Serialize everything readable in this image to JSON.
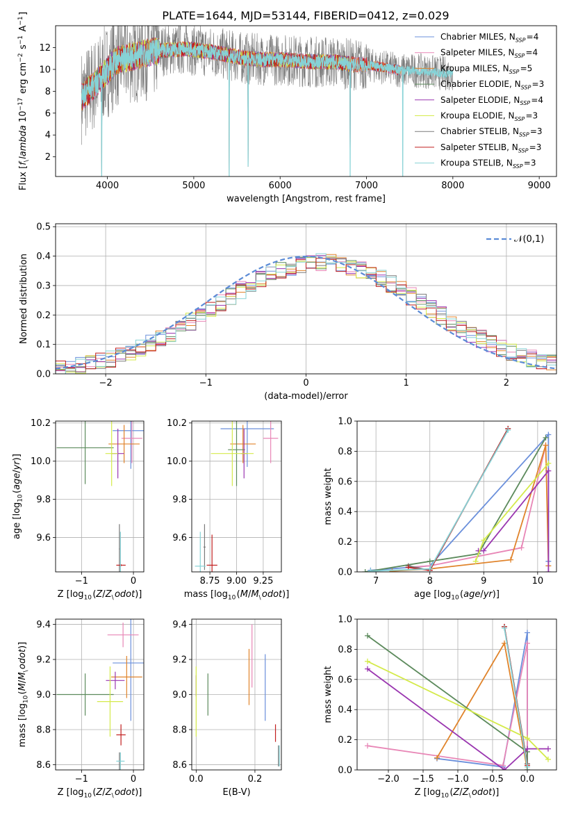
{
  "title": "PLATE=1644, MJD=53144, FIBERID=0412, z=0.029",
  "colors": {
    "Chabrier MILES": "#6a8fdb",
    "Salpeter MILES": "#e886b6",
    "Kroupa MILES": "#e0832a",
    "Chabrier ELODIE": "#5c8a5c",
    "Salpeter ELODIE": "#9a36b0",
    "Kroupa ELODIE": "#d4ea4a",
    "Chabrier STELIB": "#7a7a7a",
    "Salpeter STELIB": "#c11e1e",
    "Kroupa STELIB": "#86d2d6",
    "gauss": "#5b8bd6"
  },
  "chart_data": [
    {
      "type": "line",
      "id": "spectrum",
      "xlabel": "wavelength [Angstrom, rest frame]",
      "ylabel": "Flux [$f_\\lambda 10^{-17}$ erg cm$^{-2}$ s$^{-1}$ A$^{-1}$]",
      "xlim": [
        3400,
        9200
      ],
      "ylim": [
        0.2,
        14.0
      ],
      "xticks": [
        "4000",
        "5000",
        "6000",
        "7000",
        "8000",
        "9000"
      ],
      "yticks": [
        "2",
        "4",
        "6",
        "8",
        "10",
        "12"
      ],
      "legend": "top-right",
      "series": [
        {
          "name": "Chabrier MILES, N$_{SSP}$=4"
        },
        {
          "name": "Salpeter MILES, N$_{SSP}$=4"
        },
        {
          "name": "Kroupa MILES, N$_{SSP}$=5"
        },
        {
          "name": "Chabrier ELODIE, N$_{SSP}$=3"
        },
        {
          "name": "Salpeter ELODIE, N$_{SSP}$=4"
        },
        {
          "name": "Kroupa ELODIE, N$_{SSP}$=3"
        },
        {
          "name": "Chabrier STELIB, N$_{SSP}$=3"
        },
        {
          "name": "Salpeter STELIB, N$_{SSP}$=3"
        },
        {
          "name": "Kroupa STELIB, N$_{SSP}$=3"
        }
      ],
      "continuum": {
        "x": [
          3700,
          3800,
          3900,
          4000,
          4100,
          4200,
          4300,
          4400,
          4500,
          4600,
          4700,
          4800,
          4900,
          5000,
          5200,
          5400,
          5600,
          5800,
          6000,
          6200,
          6400,
          6600,
          6800,
          7000,
          7200,
          7400,
          7600,
          7800,
          8000,
          8200,
          8400,
          8600,
          8800,
          9000,
          9200
        ],
        "y": [
          7.5,
          8.2,
          9.0,
          9.9,
          10.8,
          11.0,
          11.2,
          11.4,
          11.6,
          11.7,
          11.8,
          11.8,
          11.9,
          11.8,
          11.6,
          11.3,
          11.0,
          10.9,
          10.9,
          10.8,
          10.7,
          10.7,
          10.5,
          10.4,
          10.2,
          9.9,
          9.9,
          9.7,
          9.6,
          9.5,
          9.4,
          9.4,
          9.3,
          9.2,
          9.2
        ]
      },
      "absorption_features": [
        {
          "x": 3934,
          "min": 0.2
        },
        {
          "x": 5411,
          "min": 0.2
        },
        {
          "x": 5630,
          "min": 1.1
        },
        {
          "x": 6810,
          "min": 0.2
        },
        {
          "x": 7420,
          "min": 0.2
        }
      ]
    },
    {
      "type": "bar",
      "id": "residuals",
      "xlabel": "(data-model)/error",
      "ylabel": "Normed distribution",
      "xlim": [
        -2.5,
        2.5
      ],
      "ylim": [
        0,
        0.51
      ],
      "xticks": [
        "−2",
        "−1",
        "0",
        "1",
        "2"
      ],
      "yticks": [
        "0.0",
        "0.1",
        "0.2",
        "0.3",
        "0.4",
        "0.5"
      ],
      "bin_width": 0.1,
      "gauss_label": "$\\mathcal{N}(0,1)$",
      "legend": "top-right",
      "note": "nine step histograms, one per model; values follow approximately the N(0,1) curve"
    },
    {
      "type": "scatter",
      "id": "age_vs_Z",
      "xlabel": "Z [log$_{10}$($Z/Z_\\odot$)]",
      "ylabel": "age  [log$_{10}$($age/yr$)]",
      "xlim": [
        -1.5,
        0.2
      ],
      "ylim": [
        9.42,
        10.21
      ],
      "xticks": [
        "−1",
        "0"
      ],
      "yticks": [
        "9.6",
        "9.8",
        "10.0",
        "10.2"
      ],
      "points": [
        {
          "model": "Chabrier MILES",
          "x": -0.05,
          "y": 10.16,
          "xerr": 0.35,
          "yerr": 0.2
        },
        {
          "model": "Salpeter MILES",
          "x": -0.03,
          "y": 10.12,
          "xerr": 0.2,
          "yerr": 0.13
        },
        {
          "model": "Kroupa MILES",
          "x": -0.18,
          "y": 10.09,
          "xerr": 0.3,
          "yerr": 0.1
        },
        {
          "model": "Chabrier ELODIE",
          "x": -0.93,
          "y": 10.07,
          "xerr": 0.55,
          "yerr": 0.19
        },
        {
          "model": "Salpeter ELODIE",
          "x": -0.3,
          "y": 10.04,
          "xerr": 0.12,
          "yerr": 0.13
        },
        {
          "model": "Kroupa ELODIE",
          "x": -0.42,
          "y": 10.04,
          "xerr": 0.12,
          "yerr": 0.17
        },
        {
          "model": "Chabrier STELIB",
          "x": -0.27,
          "y": 9.54,
          "xerr": 0.01,
          "yerr": 0.13
        },
        {
          "model": "Salpeter STELIB",
          "x": -0.24,
          "y": 9.455,
          "xerr": 0.09,
          "yerr": 0.005
        },
        {
          "model": "Kroupa STELIB",
          "x": -0.25,
          "y": 9.45,
          "xerr": 0.01,
          "yerr": 0.18
        }
      ]
    },
    {
      "type": "scatter",
      "id": "age_vs_mass",
      "xlabel": "mass [log$_{10}$($M/M_\\odot$)]",
      "ylabel": "",
      "xlim": [
        8.58,
        9.42
      ],
      "ylim": [
        9.42,
        10.21
      ],
      "xticks": [
        "8.75",
        "9.00",
        "9.25"
      ],
      "yticks": [
        "9.6",
        "9.8",
        "10.0",
        "10.2"
      ],
      "points": [
        {
          "model": "Chabrier MILES",
          "x": 9.1,
          "y": 10.17,
          "xerr": 0.25,
          "yerr": 0.2
        },
        {
          "model": "Salpeter MILES",
          "x": 9.32,
          "y": 10.12,
          "xerr": 0.07,
          "yerr": 0.13
        },
        {
          "model": "Kroupa MILES",
          "x": 9.06,
          "y": 10.09,
          "xerr": 0.12,
          "yerr": 0.1
        },
        {
          "model": "Chabrier ELODIE",
          "x": 9.0,
          "y": 10.06,
          "xerr": 0.08,
          "yerr": 0.19
        },
        {
          "model": "Salpeter ELODIE",
          "x": 9.07,
          "y": 10.04,
          "xerr": 0.03,
          "yerr": 0.13
        },
        {
          "model": "Kroupa ELODIE",
          "x": 8.96,
          "y": 10.04,
          "xerr": 0.2,
          "yerr": 0.17
        },
        {
          "model": "Chabrier STELIB",
          "x": 8.7,
          "y": 9.55,
          "xerr": 0.01,
          "yerr": 0.12
        },
        {
          "model": "Salpeter STELIB",
          "x": 8.77,
          "y": 9.455,
          "xerr": 0.05,
          "yerr": 0.16
        },
        {
          "model": "Kroupa STELIB",
          "x": 8.66,
          "y": 9.45,
          "xerr": 0.05,
          "yerr": 0.18
        }
      ]
    },
    {
      "type": "line",
      "id": "weight_vs_age",
      "xlabel": "age  [log$_{10}$($age/yr$)]",
      "ylabel": "mass weight",
      "xlim": [
        6.65,
        10.35
      ],
      "ylim": [
        0,
        1
      ],
      "xticks": [
        "7",
        "8",
        "9",
        "10"
      ],
      "yticks": [
        "0.0",
        "0.2",
        "0.4",
        "0.6",
        "0.8",
        "1.0"
      ],
      "series": [
        {
          "model": "Chabrier MILES",
          "x": [
            6.9,
            8.0,
            10.2,
            10.2
          ],
          "y": [
            0.01,
            0.04,
            0.91,
            0.07
          ]
        },
        {
          "model": "Salpeter MILES",
          "x": [
            7.6,
            8.0,
            9.7,
            10.15
          ],
          "y": [
            0.03,
            0.04,
            0.16,
            0.84
          ]
        },
        {
          "model": "Kroupa MILES",
          "x": [
            7.3,
            8.0,
            9.5,
            10.15,
            10.2
          ],
          "y": [
            0.005,
            0.02,
            0.08,
            0.84,
            0.04
          ]
        },
        {
          "model": "Chabrier ELODIE",
          "x": [
            6.8,
            8.0,
            8.9,
            10.15
          ],
          "y": [
            0.0,
            0.07,
            0.12,
            0.89
          ]
        },
        {
          "model": "Salpeter ELODIE",
          "x": [
            8.9,
            9.0,
            10.2,
            10.2
          ],
          "y": [
            0.14,
            0.14,
            0.67,
            0.0
          ]
        },
        {
          "model": "Kroupa ELODIE",
          "x": [
            8.85,
            9.0,
            10.2
          ],
          "y": [
            0.07,
            0.21,
            0.72
          ]
        },
        {
          "model": "Chabrier STELIB",
          "x": [
            7.6,
            8.0,
            9.45
          ],
          "y": [
            0.04,
            0.01,
            0.95
          ]
        },
        {
          "model": "Salpeter STELIB",
          "x": [
            7.6,
            8.0,
            9.45
          ],
          "y": [
            0.03,
            0.01,
            0.95
          ]
        },
        {
          "model": "Kroupa STELIB",
          "x": [
            6.9,
            8.0,
            9.45
          ],
          "y": [
            0.005,
            0.02,
            0.94
          ]
        }
      ]
    },
    {
      "type": "scatter",
      "id": "mass_vs_Z",
      "xlabel": "Z [log$_{10}$($Z/Z_\\odot$)]",
      "ylabel": "mass [log$_{10}$($M/M_\\odot$)]",
      "xlim": [
        -1.5,
        0.2
      ],
      "ylim": [
        8.57,
        9.43
      ],
      "xticks": [
        "−1",
        "0"
      ],
      "yticks": [
        "8.6",
        "8.8",
        "9.0",
        "9.2",
        "9.4"
      ],
      "points": [
        {
          "model": "Chabrier MILES",
          "x": -0.05,
          "y": 9.18,
          "xerr": 0.35,
          "yerr": 0.33
        },
        {
          "model": "Salpeter MILES",
          "x": -0.2,
          "y": 9.34,
          "xerr": 0.3,
          "yerr": 0.07
        },
        {
          "model": "Kroupa MILES",
          "x": -0.13,
          "y": 9.1,
          "xerr": 0.3,
          "yerr": 0.12
        },
        {
          "model": "Chabrier ELODIE",
          "x": -0.93,
          "y": 9.0,
          "xerr": 0.55,
          "yerr": 0.12
        },
        {
          "model": "Salpeter ELODIE",
          "x": -0.35,
          "y": 9.08,
          "xerr": 0.18,
          "yerr": 0.05
        },
        {
          "model": "Kroupa ELODIE",
          "x": -0.45,
          "y": 8.96,
          "xerr": 0.25,
          "yerr": 0.2
        },
        {
          "model": "Chabrier STELIB",
          "x": -0.27,
          "y": 8.62,
          "xerr": 0.01,
          "yerr": 0.05
        },
        {
          "model": "Salpeter STELIB",
          "x": -0.24,
          "y": 8.77,
          "xerr": 0.09,
          "yerr": 0.06
        },
        {
          "model": "Kroupa STELIB",
          "x": -0.25,
          "y": 8.62,
          "xerr": 0.08,
          "yerr": 0.05
        }
      ]
    },
    {
      "type": "scatter",
      "id": "mass_vs_EBV",
      "xlabel": "E(B-V)",
      "ylabel": "",
      "xlim": [
        -0.015,
        0.29
      ],
      "ylim": [
        8.57,
        9.43
      ],
      "xticks": [
        "0.0",
        "0.2"
      ],
      "yticks": [
        "8.6",
        "8.8",
        "9.0",
        "9.2",
        "9.4"
      ],
      "points": [
        {
          "model": "Chabrier MILES",
          "x": 0.235,
          "y": 9.04,
          "yerr": 0.19
        },
        {
          "model": "Salpeter MILES",
          "x": 0.19,
          "y": 9.22,
          "yerr": 0.18
        },
        {
          "model": "Kroupa MILES",
          "x": 0.18,
          "y": 9.1,
          "yerr": 0.16
        },
        {
          "model": "Chabrier ELODIE",
          "x": 0.04,
          "y": 9.0,
          "yerr": 0.12
        },
        {
          "model": "Salpeter ELODIE",
          "x": 0.0,
          "y": 9.05,
          "yerr": 0.06
        },
        {
          "model": "Kroupa ELODIE",
          "x": 0.0,
          "y": 8.96,
          "yerr": 0.2
        },
        {
          "model": "Chabrier STELIB",
          "x": 0.28,
          "y": 8.65,
          "yerr": 0.06
        },
        {
          "model": "Salpeter STELIB",
          "x": 0.27,
          "y": 8.78,
          "yerr": 0.05
        },
        {
          "model": "Kroupa STELIB",
          "x": 0.283,
          "y": 8.65,
          "yerr": 0.06
        }
      ]
    },
    {
      "type": "line",
      "id": "weight_vs_Z",
      "xlabel": "Z [log$_{10}$($Z/Z_\\odot$)]",
      "ylabel": "mass weight",
      "xlim": [
        -2.45,
        0.42
      ],
      "ylim": [
        0,
        1
      ],
      "xticks": [
        "−2.0",
        "−1.5",
        "−1.0",
        "−0.5",
        "0.0"
      ],
      "yticks": [
        "0.0",
        "0.2",
        "0.4",
        "0.6",
        "0.8",
        "1.0"
      ],
      "series": [
        {
          "model": "Chabrier MILES",
          "x": [
            -1.3,
            -0.35,
            0.0,
            0.0
          ],
          "y": [
            0.075,
            0.02,
            0.91,
            0.04
          ]
        },
        {
          "model": "Salpeter MILES",
          "x": [
            -2.3,
            -0.35,
            0.0,
            0.0
          ],
          "y": [
            0.16,
            0.03,
            0.84,
            0.0
          ]
        },
        {
          "model": "Kroupa MILES",
          "x": [
            -1.3,
            -0.33,
            0.0,
            0.0
          ],
          "y": [
            0.08,
            0.84,
            0.0,
            0.04
          ]
        },
        {
          "model": "Chabrier ELODIE",
          "x": [
            -2.3,
            0.0,
            0.0
          ],
          "y": [
            0.89,
            0.12,
            0.0
          ]
        },
        {
          "model": "Salpeter ELODIE",
          "x": [
            -2.3,
            -0.33,
            0.0,
            0.3
          ],
          "y": [
            0.67,
            0.0,
            0.14,
            0.14
          ]
        },
        {
          "model": "Kroupa ELODIE",
          "x": [
            -2.3,
            0.0,
            0.3
          ],
          "y": [
            0.72,
            0.21,
            0.07
          ]
        },
        {
          "model": "Chabrier STELIB",
          "x": [
            -0.33,
            0.0
          ],
          "y": [
            0.95,
            0.04
          ]
        },
        {
          "model": "Salpeter STELIB",
          "x": [
            -0.33,
            0.0
          ],
          "y": [
            0.95,
            0.03
          ]
        },
        {
          "model": "Kroupa STELIB",
          "x": [
            -0.33,
            0.0
          ],
          "y": [
            0.94,
            0.02
          ]
        }
      ]
    }
  ]
}
